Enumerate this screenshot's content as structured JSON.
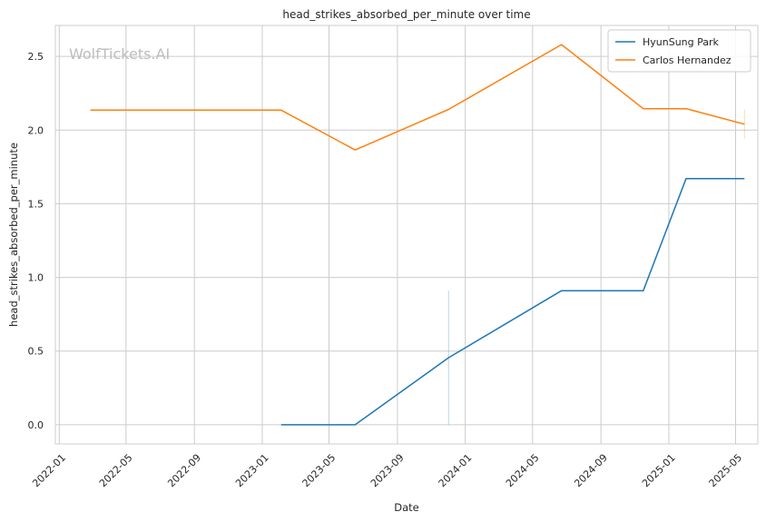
{
  "chart_data": {
    "type": "line",
    "title": "head_strikes_absorbed_per_minute over time",
    "xlabel": "Date",
    "ylabel": "head_strikes_absorbed_per_minute",
    "watermark": "WolfTickets.AI",
    "xlim": [
      "2021-12-25",
      "2025-06-10"
    ],
    "ylim": [
      -0.13,
      2.71
    ],
    "x_ticks": [
      "2022-01-01",
      "2022-05-01",
      "2022-09-01",
      "2023-01-01",
      "2023-05-01",
      "2023-09-01",
      "2024-01-01",
      "2024-05-01",
      "2024-09-01",
      "2025-01-01",
      "2025-05-01"
    ],
    "x_tick_labels": [
      "2022-01",
      "2022-05",
      "2022-09",
      "2023-01",
      "2023-05",
      "2023-09",
      "2024-01",
      "2024-05",
      "2024-09",
      "2025-01",
      "2025-05"
    ],
    "y_ticks": [
      0.0,
      0.5,
      1.0,
      1.5,
      2.0,
      2.5
    ],
    "y_tick_labels": [
      "0.0",
      "0.5",
      "1.0",
      "1.5",
      "2.0",
      "2.5"
    ],
    "grid": true,
    "legend_position": "top-right",
    "series": [
      {
        "name": "HyunSung Park",
        "color": "#1f77b4",
        "x": [
          "2023-02-04",
          "2023-06-17",
          "2023-12-02",
          "2024-06-22",
          "2024-11-16",
          "2025-02-01",
          "2025-05-17"
        ],
        "y": [
          0.0,
          0.0,
          0.455,
          0.91,
          0.91,
          1.67,
          1.67
        ]
      },
      {
        "name": "Carlos Hernandez",
        "color": "#ff7f0e",
        "x": [
          "2022-02-26",
          "2023-02-04",
          "2023-06-17",
          "2023-12-02",
          "2024-06-22",
          "2024-11-16",
          "2025-02-01",
          "2025-05-17"
        ],
        "y": [
          2.135,
          2.135,
          1.865,
          2.14,
          2.58,
          2.145,
          2.145,
          2.04
        ]
      }
    ],
    "error_bars": [
      {
        "color": "#1f77b4",
        "x": "2023-12-02",
        "y_low": 0.0,
        "y_high": 0.91
      },
      {
        "color": "#ff7f0e",
        "x": "2025-05-17",
        "y_low": 1.94,
        "y_high": 2.14
      }
    ]
  }
}
